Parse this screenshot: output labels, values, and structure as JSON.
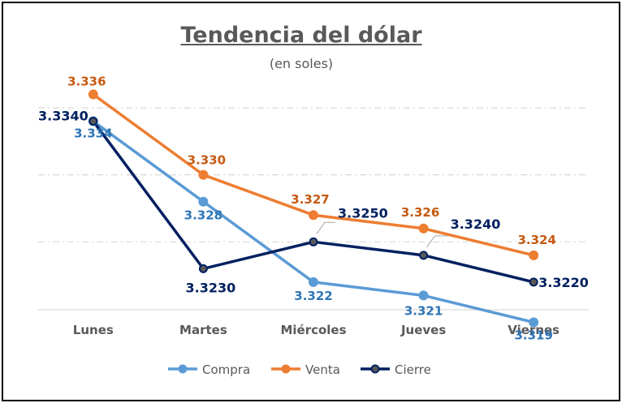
{
  "chart_data": {
    "type": "line",
    "title": "Tendencia del dólar",
    "subtitle": "(en soles)",
    "categories": [
      "Lunes",
      "Martes",
      "Miércoles",
      "Jueves",
      "Viernes"
    ],
    "ylim": [
      3.31,
      3.34
    ],
    "grid": true,
    "legend_position": "bottom",
    "series": [
      {
        "name": "Compra",
        "color": "#5B9BD5",
        "labelColor": "#2E75B6",
        "values": [
          3.334,
          3.328,
          3.322,
          3.321,
          3.319
        ],
        "labels": [
          "3.334",
          "3.328",
          "3.322",
          "3.321",
          "3.319"
        ]
      },
      {
        "name": "Venta",
        "color": "#ED7D31",
        "labelColor": "#C55A11",
        "values": [
          3.336,
          3.33,
          3.327,
          3.326,
          3.324
        ],
        "labels": [
          "3.336",
          "3.330",
          "3.327",
          "3.326",
          "3.324"
        ]
      },
      {
        "name": "Cierre",
        "color": "#002060",
        "labelColor": "#002060",
        "values": [
          3.334,
          3.323,
          3.325,
          3.324,
          3.322
        ],
        "labels": [
          "3.3340",
          "3.3230",
          "3.3250",
          "3.3240",
          "3.3220"
        ]
      }
    ]
  }
}
